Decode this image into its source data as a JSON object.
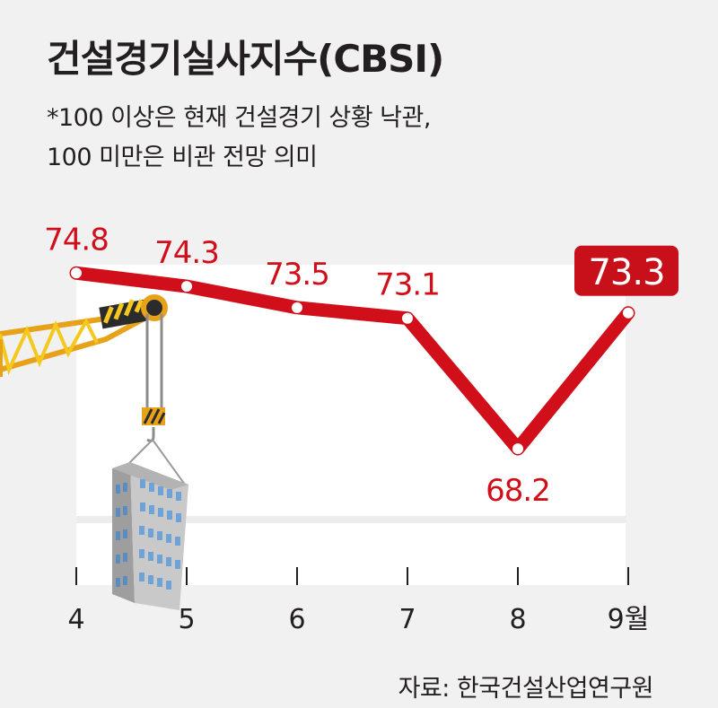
{
  "title": "건설경기실사지수(CBSI)",
  "note_lines": [
    "*100 이상은 현재 건설경기 상황 낙관,",
    "100 미만은 비관 전망 의미"
  ],
  "source": "자료: 한국건설산업연구원",
  "colors": {
    "line": "#d10f1a",
    "highlight_box": "#c8101a",
    "text": "#231f20",
    "plot_bg": "#ffffff",
    "page_bg": "#f1f1f1"
  },
  "decoration": [
    "crane-arm",
    "crane-hook",
    "building-illustration"
  ],
  "chart_data": {
    "type": "line",
    "title": "건설경기실사지수(CBSI)",
    "categories": [
      "4",
      "5",
      "6",
      "7",
      "8",
      "9월"
    ],
    "values": [
      74.8,
      74.3,
      73.5,
      73.1,
      68.2,
      73.3
    ],
    "value_labels": [
      "74.8",
      "74.3",
      "73.5",
      "73.1",
      "68.2",
      "73.3"
    ],
    "highlight_index": 5,
    "ylim": [
      62,
      80
    ],
    "grid": false,
    "legend": "none"
  }
}
